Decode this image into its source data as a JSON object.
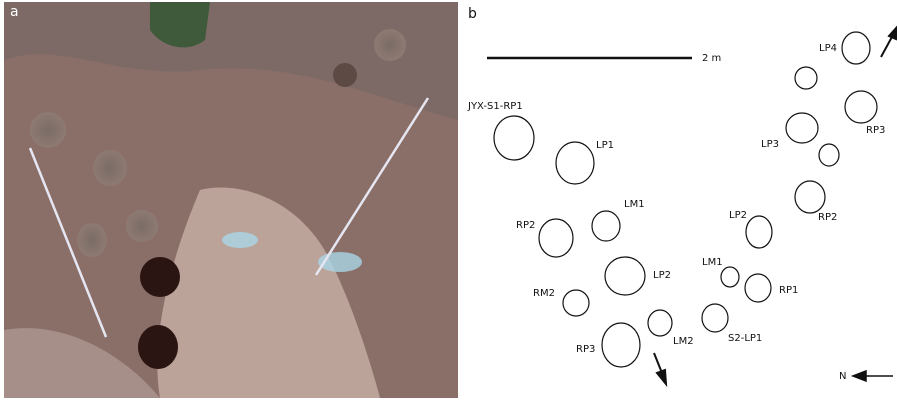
{
  "panels": [
    {
      "label": "a"
    },
    {
      "label": "b"
    }
  ],
  "scale_bar": {
    "label": "2 m"
  },
  "north": {
    "label": "N"
  },
  "footprints": [
    {
      "label": "JYX-S1-RP1"
    },
    {
      "label": "LP1"
    },
    {
      "label": "LP4"
    },
    {
      "label": "RP3"
    },
    {
      "label": "LP3"
    },
    {
      "label": "RP2"
    },
    {
      "label": "LM1"
    },
    {
      "label": "RP2"
    },
    {
      "label": "LP2"
    },
    {
      "label": "LP2"
    },
    {
      "label": "LM1"
    },
    {
      "label": "RP1"
    },
    {
      "label": "RM2"
    },
    {
      "label": "S2-LP1"
    },
    {
      "label": "LM2"
    },
    {
      "label": "RP3"
    }
  ]
}
